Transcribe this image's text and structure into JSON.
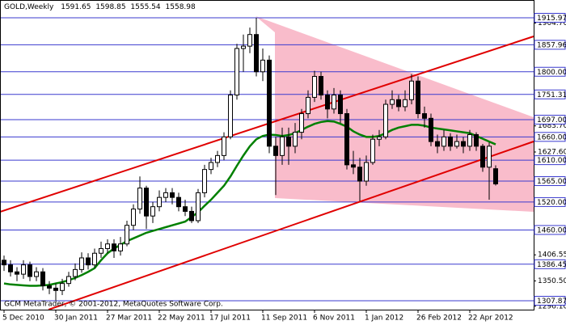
{
  "chart_data": {
    "type": "candlestick",
    "header": "GOLD,Weekly",
    "footer": "GCM MetaTrader, © 2001-2012, MetaQuotes Software Corp.",
    "categories": [
      "5 Dec 2010",
      null,
      null,
      null,
      null,
      null,
      null,
      null,
      "30 Jan 2011",
      null,
      null,
      null,
      null,
      null,
      null,
      null,
      "27 Mar 2011",
      null,
      null,
      null,
      null,
      null,
      null,
      null,
      "22 May 2011",
      null,
      null,
      null,
      null,
      null,
      null,
      null,
      "17 Jul 2011",
      null,
      null,
      null,
      null,
      null,
      null,
      null,
      "11 Sep 2011",
      null,
      null,
      null,
      null,
      null,
      null,
      null,
      "6 Nov 2011",
      null,
      null,
      null,
      null,
      null,
      null,
      null,
      "1 Jan 2012",
      null,
      null,
      null,
      null,
      null,
      null,
      null,
      "26 Feb 2012",
      null,
      null,
      null,
      null,
      null,
      null,
      null,
      "22 Apr 2012",
      null,
      null,
      null,
      null
    ],
    "open": [
      1395,
      1385,
      1370,
      1365,
      1385,
      1360,
      1370,
      1340,
      1335,
      1330,
      1345,
      1360,
      1375,
      1400,
      1385,
      1410,
      1420,
      1430,
      1415,
      1430,
      1470,
      1505,
      1550,
      1490,
      1510,
      1530,
      1540,
      1530,
      1510,
      1500,
      1480,
      1540,
      1590,
      1605,
      1620,
      1660,
      1750,
      1850,
      1855,
      1880,
      1800,
      1825,
      1640,
      1620,
      1660,
      1640,
      1670,
      1710,
      1745,
      1790,
      1750,
      1720,
      1750,
      1710,
      1600,
      1595,
      1565,
      1605,
      1655,
      1660,
      1730,
      1740,
      1725,
      1740,
      1780,
      1710,
      1700,
      1650,
      1640,
      1660,
      1640,
      1650,
      1640,
      1665,
      1640,
      1595,
      1591.65
    ],
    "high": [
      1405,
      1395,
      1380,
      1395,
      1392,
      1380,
      1378,
      1350,
      1345,
      1355,
      1370,
      1388,
      1412,
      1410,
      1420,
      1435,
      1440,
      1440,
      1445,
      1480,
      1515,
      1575,
      1555,
      1520,
      1545,
      1550,
      1550,
      1540,
      1525,
      1510,
      1548,
      1600,
      1615,
      1630,
      1670,
      1760,
      1860,
      1880,
      1895,
      1915.97,
      1850,
      1835,
      1660,
      1680,
      1680,
      1690,
      1720,
      1760,
      1802,
      1800,
      1760,
      1765,
      1760,
      1720,
      1630,
      1615,
      1620,
      1665,
      1675,
      1740,
      1760,
      1750,
      1760,
      1795,
      1790,
      1725,
      1710,
      1665,
      1675,
      1668,
      1665,
      1660,
      1675,
      1670,
      1645,
      1648,
      1598.85
    ],
    "low": [
      1372,
      1360,
      1350,
      1355,
      1350,
      1350,
      1330,
      1322,
      1309,
      1320,
      1338,
      1352,
      1368,
      1375,
      1378,
      1400,
      1410,
      1400,
      1405,
      1425,
      1460,
      1495,
      1462,
      1475,
      1500,
      1520,
      1515,
      1500,
      1490,
      1475,
      1475,
      1530,
      1580,
      1595,
      1610,
      1655,
      1740,
      1800,
      1840,
      1790,
      1780,
      1625,
      1535,
      1600,
      1600,
      1625,
      1655,
      1700,
      1735,
      1740,
      1700,
      1710,
      1690,
      1590,
      1580,
      1522,
      1555,
      1600,
      1640,
      1655,
      1720,
      1715,
      1715,
      1730,
      1700,
      1680,
      1640,
      1625,
      1630,
      1630,
      1635,
      1625,
      1630,
      1630,
      1585,
      1525,
      1555.54
    ],
    "close": [
      1385,
      1370,
      1365,
      1385,
      1360,
      1370,
      1340,
      1335,
      1330,
      1345,
      1360,
      1375,
      1400,
      1385,
      1410,
      1420,
      1430,
      1415,
      1430,
      1470,
      1505,
      1550,
      1490,
      1510,
      1530,
      1540,
      1530,
      1510,
      1500,
      1480,
      1540,
      1590,
      1605,
      1620,
      1660,
      1750,
      1850,
      1855,
      1880,
      1800,
      1825,
      1640,
      1620,
      1660,
      1640,
      1670,
      1710,
      1745,
      1790,
      1750,
      1720,
      1750,
      1710,
      1600,
      1595,
      1565,
      1605,
      1655,
      1660,
      1730,
      1740,
      1725,
      1740,
      1780,
      1710,
      1700,
      1650,
      1640,
      1660,
      1640,
      1650,
      1640,
      1665,
      1640,
      1595,
      1640,
      1558.98
    ],
    "ma": {
      "color": "#008000",
      "values": [
        1345,
        1343,
        1342,
        1341,
        1340,
        1340,
        1341,
        1342,
        1345,
        1348,
        1352,
        1357,
        1363,
        1370,
        1378,
        1395,
        1410,
        1420,
        1428,
        1436,
        1442,
        1448,
        1454,
        1458,
        1462,
        1466,
        1470,
        1474,
        1478,
        1488,
        1498,
        1512,
        1525,
        1540,
        1555,
        1575,
        1598,
        1620,
        1640,
        1655,
        1662,
        1665,
        1664,
        1662,
        1664,
        1668,
        1675,
        1682,
        1688,
        1692,
        1694,
        1693,
        1688,
        1682,
        1672,
        1665,
        1660,
        1660,
        1662,
        1668,
        1675,
        1680,
        1683,
        1686,
        1686,
        1684,
        1680,
        1678,
        1676,
        1674,
        1672,
        1670,
        1668,
        1662,
        1656,
        1650,
        1644
      ]
    },
    "up_color": "#ffffff",
    "down_color": "#000000",
    "ylim": [
      1288.8,
      1954.2
    ],
    "yticks": [
      {
        "value": 1904.7,
        "label": "1904.70"
      },
      {
        "value": 1683.7,
        "label": "1683.70"
      },
      {
        "value": 1627.6,
        "label": "1627.60"
      },
      {
        "value": 1406.55,
        "label": "1406.55"
      },
      {
        "value": 1350.5,
        "label": "1350.50"
      },
      {
        "value": 1296.1,
        "label": "1296.10"
      }
    ],
    "level_color": "#3a3acf",
    "levels": [
      {
        "value": 1915.97,
        "label": "1915.97"
      },
      {
        "value": 1857.96,
        "label": "1857.96"
      },
      {
        "value": 1800,
        "label": "1800.00"
      },
      {
        "value": 1751.31,
        "label": "1751.31"
      },
      {
        "value": 1697,
        "label": "1697.00"
      },
      {
        "value": 1660,
        "label": "1660.00"
      },
      {
        "value": 1610,
        "label": "1610.00"
      },
      {
        "value": 1565,
        "label": "1565.00"
      },
      {
        "value": 1520,
        "label": "1520.00"
      },
      {
        "value": 1460,
        "label": "1460.00"
      },
      {
        "value": 1386.45,
        "label": "1386.45"
      },
      {
        "value": 1307.87,
        "label": "1307.87"
      }
    ]
  }
}
